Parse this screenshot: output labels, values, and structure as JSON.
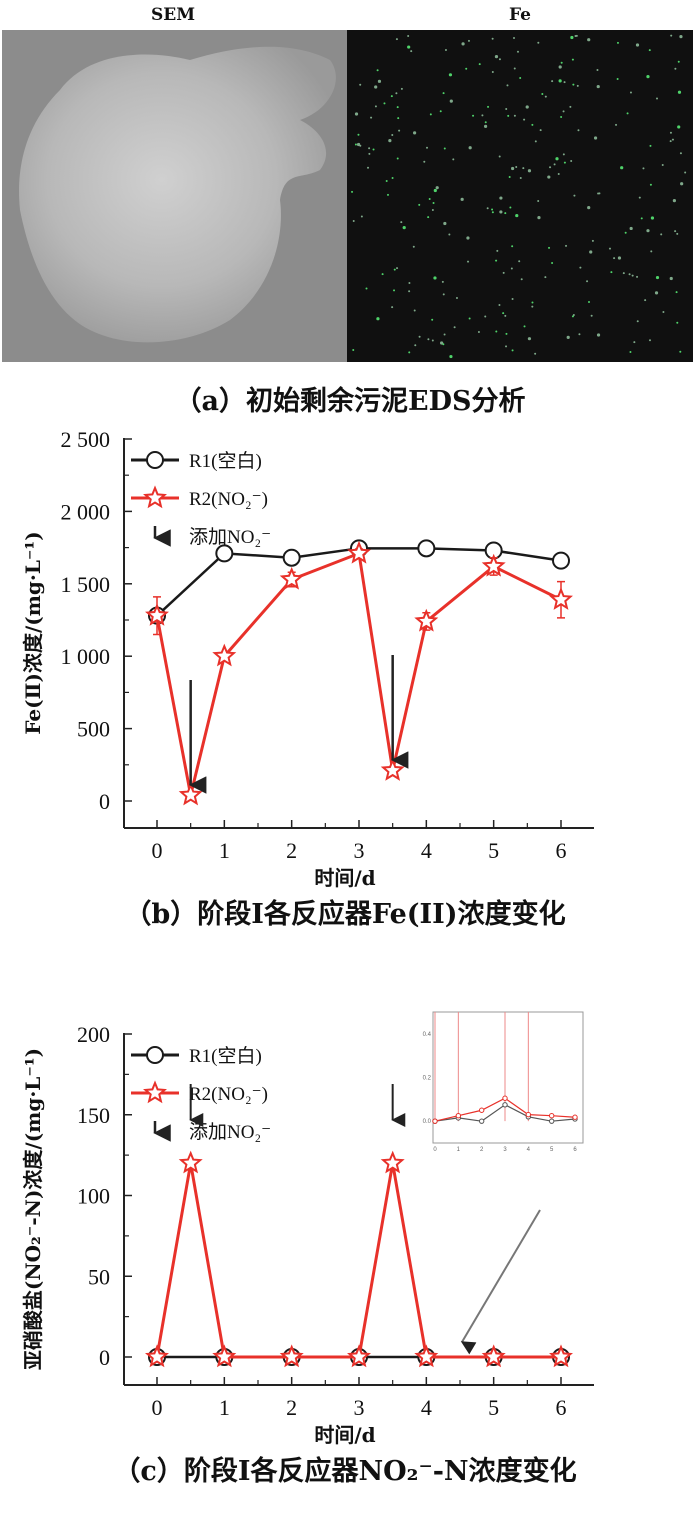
{
  "panel_a": {
    "sem_label": "SEM",
    "fe_label": "Fe",
    "caption": "（a）初始剩余污泥EDS分析"
  },
  "chart_data": [
    {
      "type": "line",
      "ylabel": "Fe(Ⅱ)浓度/(mg·L⁻¹)",
      "xlabel": "时间/d",
      "caption": "（b）阶段I各反应器Fe(II)浓度变化",
      "xlim": [
        -0.4,
        6.5
      ],
      "ylim": [
        -180,
        2500
      ],
      "xticks": [
        0,
        1,
        2,
        3,
        4,
        5,
        6
      ],
      "yticks": [
        0,
        500,
        1000,
        1500,
        2000,
        2500
      ],
      "ytick_labels": [
        "0",
        "500",
        "1 000",
        "1 500",
        "2 000",
        "2 500"
      ],
      "legend_position": "top-left",
      "series": [
        {
          "name": "R1(空白)",
          "color": "#1a1a1a",
          "marker": "circle",
          "x": [
            0,
            1,
            2,
            3,
            4,
            5,
            6
          ],
          "y": [
            1280,
            1710,
            1680,
            1745,
            1745,
            1730,
            1660
          ],
          "err": [
            30,
            30,
            30,
            25,
            30,
            30,
            30
          ]
        },
        {
          "name": "R2(NO₂⁻)",
          "color": "#e8312a",
          "marker": "star",
          "x": [
            0,
            0.5,
            1,
            2,
            3,
            3.5,
            4,
            5,
            6
          ],
          "y": [
            1280,
            40,
            1000,
            1530,
            1710,
            210,
            1240,
            1620,
            1390
          ],
          "err": [
            130,
            20,
            20,
            50,
            30,
            20,
            60,
            60,
            125
          ]
        }
      ],
      "annotation": {
        "name": "添加NO₂⁻",
        "arrow_x": [
          0.5,
          3.5
        ]
      }
    },
    {
      "type": "line",
      "ylabel": "亚硝酸盐(NO₂⁻-N)浓度/(mg·L⁻¹)",
      "xlabel": "时间/d",
      "caption": "（c）阶段I各反应器NO₂⁻-N浓度变化",
      "xlim": [
        -0.4,
        6.5
      ],
      "ylim": [
        -17,
        200
      ],
      "xticks": [
        0,
        1,
        2,
        3,
        4,
        5,
        6
      ],
      "yticks": [
        0,
        50,
        100,
        150,
        200
      ],
      "ytick_labels": [
        "0",
        "50",
        "100",
        "150",
        "200"
      ],
      "legend_position": "top-left",
      "series": [
        {
          "name": "R1(空白)",
          "color": "#1a1a1a",
          "marker": "circle",
          "x": [
            0,
            1,
            2,
            3,
            4,
            5,
            6
          ],
          "y": [
            0,
            0,
            0,
            0,
            0,
            0,
            0
          ]
        },
        {
          "name": "R2(NO₂⁻)",
          "color": "#e8312a",
          "marker": "star",
          "x": [
            0,
            0.5,
            1,
            2,
            3,
            3.5,
            4,
            5,
            6
          ],
          "y": [
            0,
            120,
            0,
            0,
            0,
            120,
            0,
            0,
            0
          ]
        }
      ],
      "annotation": {
        "name": "添加NO₂⁻",
        "arrow_x": [
          0.5,
          3.5
        ]
      },
      "inset": {
        "xticks": [
          0,
          1,
          2,
          3,
          4,
          5,
          6
        ],
        "yticks": [
          0.0,
          0.2,
          0.4
        ],
        "ytick_labels": [
          "0.0",
          "0.2",
          "0.4"
        ],
        "ylim": [
          -0.1,
          0.5
        ],
        "series": [
          {
            "color": "#555555",
            "x": [
              0,
              1,
              2,
              3,
              4,
              5,
              6
            ],
            "y": [
              0,
              0.015,
              0,
              0.075,
              0.02,
              0,
              0.01
            ]
          },
          {
            "color": "#e8312a",
            "x": [
              0,
              1,
              2,
              3,
              4,
              5,
              6
            ],
            "y": [
              0,
              0.025,
              0.05,
              0.105,
              0.03,
              0.025,
              0.018
            ]
          }
        ]
      }
    }
  ]
}
